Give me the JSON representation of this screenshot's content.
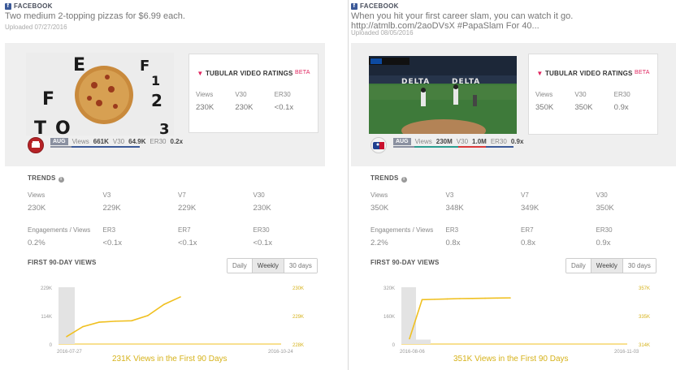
{
  "left": {
    "source_label": "FACEBOOK",
    "caption": "Two medium 2-topping pizzas for $6.99 each.",
    "uploaded": "Uploaded 07/27/2016",
    "rating_card": {
      "title": "TUBULAR VIDEO RATINGS",
      "beta": "BETA",
      "labels": [
        "Views",
        "V30",
        "ER30"
      ],
      "values": [
        "230K",
        "230K",
        "<0.1x"
      ]
    },
    "stats": {
      "badge": "AUG",
      "views_label": "Views",
      "views": "661K",
      "v30_label": "V30",
      "v30": "64.9K",
      "er30_label": "ER30",
      "er30": "0.2x"
    },
    "trends": {
      "title": "TRENDS",
      "row1_labels": [
        "Views",
        "V3",
        "V7",
        "V30"
      ],
      "row1_values": [
        "230K",
        "229K",
        "229K",
        "230K"
      ],
      "row2_labels": [
        "Engagements / Views",
        "ER3",
        "ER7",
        "ER30"
      ],
      "row2_values": [
        "0.2%",
        "<0.1x",
        "<0.1x",
        "<0.1x"
      ]
    },
    "first90": {
      "title": "FIRST 90-DAY VIEWS",
      "tabs": [
        "Daily",
        "Weekly",
        "30 days"
      ],
      "active_tab": "Weekly",
      "summary": "231K Views in the First 90 Days"
    },
    "chart_data": {
      "type": "line",
      "x_start": "2016-07-27",
      "x_end": "2016-10-24",
      "left_ticks": [
        "229K",
        "114K",
        "0"
      ],
      "right_ticks": [
        "230K",
        "229K",
        "228K"
      ],
      "y_max": 229000,
      "bar_y": [
        229000
      ],
      "x": [
        0,
        1,
        2,
        3,
        4,
        5,
        6,
        7
      ],
      "values": [
        30000,
        70000,
        88000,
        92000,
        94000,
        115000,
        160000,
        190000
      ],
      "series_color": "#f0c020",
      "bar_color": "#e3e3e3"
    }
  },
  "right": {
    "source_label": "FACEBOOK",
    "caption": "When you hit your first career slam, you can watch it go.",
    "caption2": "http://atmlb.com/2aoDVsX #PapaSlam For 40...",
    "uploaded": "Uploaded 08/05/2016",
    "rating_card": {
      "title": "TUBULAR VIDEO RATINGS",
      "beta": "BETA",
      "labels": [
        "Views",
        "V30",
        "ER30"
      ],
      "values": [
        "350K",
        "350K",
        "0.9x"
      ]
    },
    "stats": {
      "badge": "AUG",
      "views_label": "Views",
      "views": "230M",
      "v30_label": "V30",
      "v30": "1.0M",
      "er30_label": "ER30",
      "er30": "0.9x"
    },
    "trends": {
      "title": "TRENDS",
      "row1_labels": [
        "Views",
        "V3",
        "V7",
        "V30"
      ],
      "row1_values": [
        "350K",
        "348K",
        "349K",
        "350K"
      ],
      "row2_labels": [
        "Engagements / Views",
        "ER3",
        "ER7",
        "ER30"
      ],
      "row2_values": [
        "2.2%",
        "0.8x",
        "0.8x",
        "0.9x"
      ]
    },
    "first90": {
      "title": "FIRST 90-DAY VIEWS",
      "tabs": [
        "Daily",
        "Weekly",
        "30 days"
      ],
      "active_tab": "Weekly",
      "summary": "351K Views in the First 90 Days"
    },
    "chart_data": {
      "type": "line",
      "x_start": "2016-08-06",
      "x_end": "2016-11-03",
      "left_ticks": [
        "320K",
        "160K",
        "0"
      ],
      "right_ticks": [
        "357K",
        "335K",
        "314K"
      ],
      "y_max": 320000,
      "bar_y": [
        320000,
        25000
      ],
      "x": [
        0,
        1,
        2,
        3,
        4,
        5,
        6,
        7,
        8
      ],
      "values": [
        30000,
        250000,
        252000,
        254000,
        256000,
        257000,
        258000,
        259000,
        260000
      ],
      "series_color": "#f0c020",
      "bar_color": "#e3e3e3"
    }
  }
}
